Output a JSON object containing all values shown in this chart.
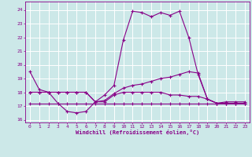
{
  "xlabel": "Windchill (Refroidissement éolien,°C)",
  "bg_color": "#cce8e8",
  "line_color": "#880088",
  "grid_color": "#ffffff",
  "spine_color": "#880088",
  "xlim": [
    -0.5,
    23.5
  ],
  "ylim": [
    15.8,
    24.6
  ],
  "yticks": [
    16,
    17,
    18,
    19,
    20,
    21,
    22,
    23,
    24
  ],
  "xticks": [
    0,
    1,
    2,
    3,
    4,
    5,
    6,
    7,
    8,
    9,
    10,
    11,
    12,
    13,
    14,
    15,
    16,
    17,
    18,
    19,
    20,
    21,
    22,
    23
  ],
  "series": [
    {
      "x": [
        0,
        1,
        2,
        3,
        4,
        5,
        6,
        7,
        8,
        9,
        10,
        11,
        12,
        13,
        14,
        15,
        16,
        17,
        18,
        19,
        20,
        21,
        22,
        23
      ],
      "y": [
        19.5,
        18.2,
        18.0,
        17.2,
        16.6,
        16.5,
        16.6,
        17.3,
        17.8,
        18.5,
        21.8,
        23.9,
        23.8,
        23.5,
        23.8,
        23.6,
        23.9,
        22.0,
        19.3,
        17.5,
        17.2,
        17.3,
        17.3,
        17.3
      ]
    },
    {
      "x": [
        0,
        1,
        2,
        3,
        4,
        5,
        6,
        7,
        8,
        9,
        10,
        11,
        12,
        13,
        14,
        15,
        16,
        17,
        18,
        19,
        20,
        21,
        22,
        23
      ],
      "y": [
        18.0,
        18.0,
        18.0,
        18.0,
        18.0,
        18.0,
        18.0,
        17.3,
        17.4,
        17.9,
        18.3,
        18.5,
        18.6,
        18.8,
        19.0,
        19.1,
        19.3,
        19.5,
        19.4,
        17.5,
        17.2,
        17.2,
        17.2,
        17.2
      ]
    },
    {
      "x": [
        0,
        1,
        2,
        3,
        4,
        5,
        6,
        7,
        8,
        9,
        10,
        11,
        12,
        13,
        14,
        15,
        16,
        17,
        18,
        19,
        20,
        21,
        22,
        23
      ],
      "y": [
        18.0,
        18.0,
        18.0,
        18.0,
        18.0,
        18.0,
        18.0,
        17.3,
        17.3,
        17.8,
        18.0,
        18.0,
        18.0,
        18.0,
        18.0,
        17.8,
        17.8,
        17.7,
        17.7,
        17.5,
        17.2,
        17.2,
        17.2,
        17.2
      ]
    },
    {
      "x": [
        0,
        1,
        2,
        3,
        4,
        5,
        6,
        7,
        8,
        9,
        10,
        11,
        12,
        13,
        14,
        15,
        16,
        17,
        18,
        19,
        20,
        21,
        22,
        23
      ],
      "y": [
        17.2,
        17.2,
        17.2,
        17.2,
        17.2,
        17.2,
        17.2,
        17.2,
        17.2,
        17.2,
        17.2,
        17.2,
        17.2,
        17.2,
        17.2,
        17.2,
        17.2,
        17.2,
        17.2,
        17.2,
        17.2,
        17.2,
        17.2,
        17.2
      ]
    }
  ]
}
